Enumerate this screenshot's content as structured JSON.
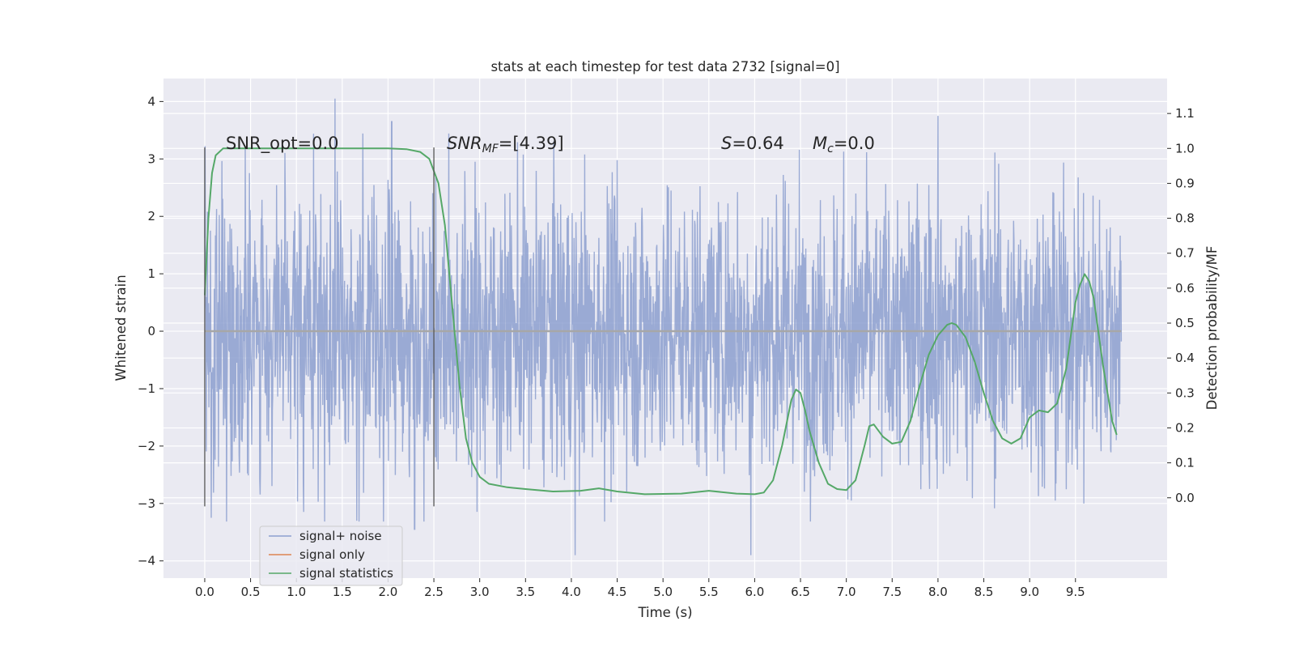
{
  "chart_data": {
    "type": "line",
    "title": "stats at each timestep for test data 2732 [signal=0]",
    "xlabel": "Time (s)",
    "ylabel": "Whitened strain",
    "ylabel_right": "Detection probability/MF",
    "xlim": [
      -0.45,
      10.5
    ],
    "ylim": [
      -4.3,
      4.4
    ],
    "ylim_right": [
      -0.23,
      1.2
    ],
    "x_ticks": [
      "0.0",
      "0.5",
      "1.0",
      "1.5",
      "2.0",
      "2.5",
      "3.0",
      "3.5",
      "4.0",
      "4.5",
      "5.0",
      "5.5",
      "6.0",
      "6.5",
      "7.0",
      "7.5",
      "8.0",
      "8.5",
      "9.0",
      "9.5"
    ],
    "y_ticks": [
      "−4",
      "−3",
      "−2",
      "−1",
      "0",
      "1",
      "2",
      "3",
      "4"
    ],
    "y_ticks_right": [
      "0.0",
      "0.1",
      "0.2",
      "0.3",
      "0.4",
      "0.5",
      "0.6",
      "0.7",
      "0.8",
      "0.9",
      "1.0",
      "1.1"
    ],
    "grid": true,
    "legend_position": "lower-left",
    "annotations": {
      "snr_opt": "SNR_opt=0.0",
      "snr_mf_prefix": "SNR",
      "snr_mf_sub": "MF",
      "snr_mf_value": "=[4.39]",
      "s_label": "S",
      "s_value": "=0.64",
      "mc_label": "M",
      "mc_sub": "c",
      "mc_value": "=0.0"
    },
    "vertical_markers": [
      {
        "x": 0.0,
        "y_range": [
          -3.05,
          3.2
        ]
      },
      {
        "x": 2.5,
        "y_range": [
          -3.05,
          3.2
        ]
      }
    ],
    "series": [
      {
        "name": "signal+ noise",
        "color": "#8c9fcf",
        "description_of_data": "dense noise trace between 0 and 10 s",
        "x_range": [
          0.0,
          10.0
        ],
        "typical_amplitude": 1.3,
        "peak_range": [
          -3.9,
          4.05
        ],
        "notable_peaks": [
          {
            "x": 1.42,
            "y": 4.05
          },
          {
            "x": 2.04,
            "y": 3.65
          },
          {
            "x": 8.0,
            "y": 3.75
          },
          {
            "x": 4.04,
            "y": -3.9
          },
          {
            "x": 5.96,
            "y": -3.9
          },
          {
            "x": 0.07,
            "y": -3.25
          },
          {
            "x": 2.29,
            "y": -3.45
          },
          {
            "x": 1.66,
            "y": -3.3
          }
        ]
      },
      {
        "name": "signal only",
        "color": "#dd8452",
        "x": [
          0.0,
          10.0
        ],
        "y": [
          0.0,
          0.0
        ]
      },
      {
        "name": "signal statistics",
        "color": "#55a868",
        "axis": "right",
        "x": [
          0.0,
          0.04,
          0.08,
          0.12,
          0.2,
          0.3,
          0.5,
          1.0,
          1.5,
          2.0,
          2.2,
          2.35,
          2.45,
          2.55,
          2.62,
          2.7,
          2.78,
          2.85,
          2.92,
          3.0,
          3.1,
          3.3,
          3.5,
          3.8,
          4.1,
          4.3,
          4.5,
          4.8,
          5.2,
          5.5,
          5.8,
          6.0,
          6.1,
          6.2,
          6.3,
          6.4,
          6.45,
          6.5,
          6.55,
          6.6,
          6.7,
          6.8,
          6.9,
          7.0,
          7.1,
          7.2,
          7.25,
          7.3,
          7.4,
          7.5,
          7.6,
          7.7,
          7.8,
          7.9,
          8.0,
          8.1,
          8.15,
          8.2,
          8.3,
          8.4,
          8.5,
          8.6,
          8.7,
          8.8,
          8.9,
          9.0,
          9.1,
          9.2,
          9.3,
          9.4,
          9.5,
          9.55,
          9.6,
          9.65,
          9.7,
          9.8,
          9.9,
          9.95
        ],
        "y": [
          0.58,
          0.8,
          0.93,
          0.98,
          1.0,
          1.0,
          1.0,
          1.0,
          1.0,
          1.0,
          0.998,
          0.99,
          0.97,
          0.9,
          0.78,
          0.55,
          0.32,
          0.17,
          0.1,
          0.06,
          0.04,
          0.03,
          0.025,
          0.018,
          0.02,
          0.027,
          0.018,
          0.01,
          0.012,
          0.02,
          0.012,
          0.01,
          0.015,
          0.05,
          0.15,
          0.28,
          0.31,
          0.3,
          0.25,
          0.19,
          0.1,
          0.04,
          0.025,
          0.022,
          0.05,
          0.15,
          0.205,
          0.21,
          0.175,
          0.155,
          0.16,
          0.22,
          0.32,
          0.41,
          0.465,
          0.495,
          0.5,
          0.495,
          0.46,
          0.39,
          0.3,
          0.22,
          0.17,
          0.155,
          0.17,
          0.23,
          0.25,
          0.245,
          0.27,
          0.37,
          0.56,
          0.61,
          0.64,
          0.62,
          0.57,
          0.38,
          0.22,
          0.18
        ]
      }
    ]
  }
}
